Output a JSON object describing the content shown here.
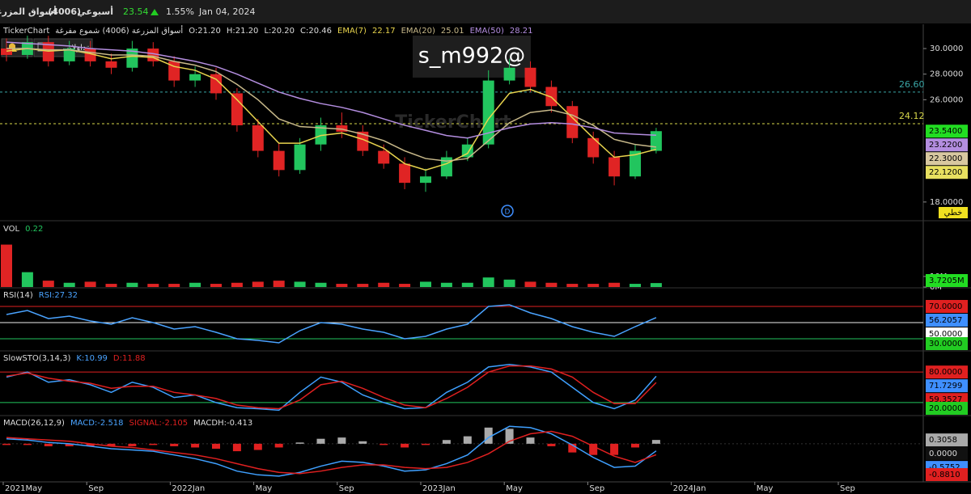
{
  "header": {
    "name": "أسواق المزرعة",
    "code": "(4006)",
    "period": "أسبوعي",
    "price": "23.54",
    "change": "1.55%",
    "date": "Jan 04, 2024"
  },
  "toolbar": {
    "alerts": "3",
    "portfolio": "تداولاتي"
  },
  "watermark": "s_m992@",
  "brand_watermark": "TickerChart",
  "event_marker": "D",
  "x_axis": {
    "labels": [
      "2021May",
      "Sep",
      "2022Jan",
      "May",
      "Sep",
      "2023Jan",
      "May",
      "Sep",
      "2024Jan",
      "May",
      "Sep"
    ]
  },
  "chart_data": [
    {
      "type": "candlestick",
      "legend": [
        {
          "text": "TickerChart",
          "color": "#dddddd"
        },
        {
          "text": "أسواق المزرعة (4006) شموع مفرغة",
          "color": "#dddddd"
        },
        {
          "text": "O:21.20",
          "color": "#dddddd"
        },
        {
          "text": "H:21.20",
          "color": "#dddddd"
        },
        {
          "text": "L:20.20",
          "color": "#dddddd"
        },
        {
          "text": "C:20.46",
          "color": "#dddddd"
        },
        {
          "text": "EMA(7)",
          "color": "#e8d44d"
        },
        {
          "text": "22.17",
          "color": "#e8d44d"
        },
        {
          "text": "EMA(20)",
          "color": "#c8b98a"
        },
        {
          "text": "25.01",
          "color": "#c8b98a"
        },
        {
          "text": "EMA(50)",
          "color": "#b48ee0"
        },
        {
          "text": "28.21",
          "color": "#b48ee0"
        }
      ],
      "up_color": "#22c55e",
      "down_color": "#e02424",
      "open": [
        30.0,
        29.5,
        30.5,
        29.0,
        30.0,
        29.0,
        28.5,
        30.0,
        29.0,
        27.5,
        28.0,
        26.5,
        24.0,
        22.0,
        20.5,
        22.5,
        24.0,
        23.5,
        22.0,
        21.0,
        19.5,
        20.0,
        21.5,
        22.5,
        27.5,
        28.5,
        27.0,
        25.5,
        23.0,
        21.5,
        20.0,
        22.0
      ],
      "high": [
        30.8,
        31.0,
        31.0,
        30.6,
        30.6,
        29.6,
        30.6,
        30.5,
        29.4,
        28.6,
        28.5,
        26.9,
        24.5,
        22.6,
        23.0,
        24.6,
        25.0,
        24.0,
        22.5,
        21.5,
        20.6,
        22.0,
        23.0,
        28.3,
        29.2,
        29.0,
        27.5,
        25.9,
        23.5,
        22.0,
        22.5,
        23.8
      ],
      "low": [
        29.0,
        29.2,
        28.6,
        28.7,
        28.6,
        28.0,
        28.2,
        28.6,
        27.0,
        27.0,
        26.0,
        23.5,
        21.5,
        20.0,
        20.2,
        22.0,
        23.0,
        21.6,
        20.6,
        19.0,
        18.8,
        19.8,
        21.2,
        22.2,
        27.2,
        26.6,
        25.0,
        22.6,
        21.0,
        19.3,
        19.8,
        21.8
      ],
      "close": [
        29.5,
        30.5,
        29.0,
        30.0,
        29.0,
        28.5,
        30.0,
        29.0,
        27.5,
        28.0,
        26.5,
        24.0,
        22.0,
        20.5,
        22.5,
        24.0,
        23.5,
        22.0,
        21.0,
        19.5,
        20.0,
        21.5,
        22.5,
        27.5,
        28.5,
        27.0,
        25.5,
        23.0,
        21.5,
        20.0,
        22.0,
        23.54
      ],
      "series": [
        {
          "color": "#e8d44d",
          "values": [
            29.8,
            30.0,
            29.8,
            29.9,
            29.6,
            29.2,
            29.4,
            29.3,
            28.6,
            28.3,
            27.6,
            26.0,
            24.3,
            22.6,
            22.6,
            23.2,
            23.4,
            22.9,
            22.2,
            21.0,
            20.5,
            21.0,
            21.8,
            24.5,
            26.5,
            26.8,
            26.2,
            24.6,
            23.0,
            21.5,
            21.7,
            22.12
          ]
        },
        {
          "color": "#c8b98a",
          "values": [
            30.0,
            30.0,
            29.9,
            29.9,
            29.7,
            29.5,
            29.5,
            29.4,
            29.0,
            28.7,
            28.2,
            27.2,
            26.0,
            24.5,
            23.9,
            23.8,
            23.7,
            23.3,
            22.8,
            22.0,
            21.4,
            21.2,
            21.4,
            22.8,
            24.2,
            25.0,
            25.2,
            24.8,
            24.0,
            22.9,
            22.5,
            22.3
          ]
        },
        {
          "color": "#b48ee0",
          "values": [
            30.5,
            30.4,
            30.3,
            30.2,
            30.0,
            29.9,
            29.8,
            29.6,
            29.3,
            29.0,
            28.6,
            28.0,
            27.3,
            26.6,
            26.1,
            25.7,
            25.4,
            25.0,
            24.5,
            24.0,
            23.6,
            23.2,
            23.0,
            23.4,
            23.8,
            24.1,
            24.2,
            24.1,
            23.8,
            23.4,
            23.3,
            23.22
          ]
        }
      ],
      "ylim": [
        16.6,
        31.9
      ],
      "yticks": [
        {
          "value": 18,
          "label": "18.0000"
        },
        {
          "value": 26,
          "label": "26.0000"
        },
        {
          "value": 28,
          "label": "28.0000"
        },
        {
          "value": 30,
          "label": "30.0000"
        }
      ],
      "hlines": [
        {
          "value": 26.6,
          "label": "26.60",
          "color": "#3aa6a6",
          "dash": true
        },
        {
          "value": 24.12,
          "label": "24.12",
          "color": "#d8d84a",
          "dash": true
        }
      ],
      "badges": [
        {
          "value": 23.54,
          "label": "23.5400",
          "color": "#22dd22"
        },
        {
          "value": 23.22,
          "label": "23.2200",
          "color": "#b48ee0"
        },
        {
          "value": 22.3,
          "label": "22.3000",
          "color": "#d8c8a0"
        },
        {
          "value": 22.12,
          "label": "22.1200",
          "color": "#e8e060"
        }
      ],
      "mode_label": "خطي"
    },
    {
      "type": "bar",
      "legend": [
        {
          "text": "VOL",
          "color": "#dddddd"
        },
        {
          "text": "0.22",
          "color": "#22c55e"
        }
      ],
      "values": [
        40,
        14,
        6,
        4,
        5,
        3,
        4,
        3,
        3,
        4,
        3,
        4,
        5,
        6,
        5,
        4,
        3,
        3,
        4,
        3,
        5,
        4,
        4,
        9,
        7,
        5,
        4,
        3,
        3,
        4,
        3,
        3.7205
      ],
      "ylim": [
        0,
        61
      ],
      "yticks": [
        {
          "value": 0,
          "label": "0M"
        },
        {
          "value": 10,
          "label": "10M"
        }
      ],
      "badges": [
        {
          "value": 3.7205,
          "label": "3.7205M",
          "color": "#22dd22"
        }
      ]
    },
    {
      "type": "line",
      "legend": [
        {
          "text": "RSI(14)",
          "color": "#dddddd"
        },
        {
          "text": "RSI:27.32",
          "color": "#4aa3ff"
        }
      ],
      "series": [
        {
          "color": "#4aa3ff",
          "values": [
            60,
            65,
            55,
            58,
            52,
            48,
            56,
            50,
            42,
            45,
            38,
            30,
            28,
            25,
            40,
            50,
            48,
            42,
            38,
            30,
            33,
            42,
            48,
            70,
            72,
            62,
            55,
            45,
            38,
            33,
            45,
            56.2057
          ]
        }
      ],
      "ylim": [
        16,
        92
      ],
      "hlines": [
        {
          "value": 70,
          "color": "#e02020"
        },
        {
          "value": 50,
          "color": "#eeeeee"
        },
        {
          "value": 30,
          "color": "#22c55e"
        }
      ],
      "badges": [
        {
          "value": 70,
          "label": "70.0000",
          "color": "#e02020"
        },
        {
          "value": 56.2057,
          "label": "56.2057",
          "color": "#3f8fff"
        },
        {
          "value": 50,
          "label": "50.0000",
          "color": "#ffffff"
        },
        {
          "value": 30,
          "label": "30.0000",
          "color": "#22cc22"
        }
      ]
    },
    {
      "type": "line",
      "legend": [
        {
          "text": "SlowSTO(3,14,3)",
          "color": "#dddddd"
        },
        {
          "text": "K:10.99",
          "color": "#4aa3ff"
        },
        {
          "text": "D:11.88",
          "color": "#e02020"
        }
      ],
      "series": [
        {
          "color": "#3fa0ff",
          "values": [
            70,
            80,
            60,
            65,
            55,
            40,
            60,
            50,
            30,
            35,
            20,
            10,
            8,
            5,
            40,
            70,
            60,
            35,
            20,
            8,
            10,
            40,
            60,
            90,
            95,
            90,
            80,
            50,
            20,
            8,
            25,
            71.7299
          ]
        },
        {
          "color": "#e02020",
          "values": [
            72,
            78,
            68,
            62,
            58,
            48,
            52,
            52,
            40,
            35,
            28,
            15,
            10,
            8,
            25,
            55,
            62,
            48,
            30,
            15,
            10,
            28,
            50,
            80,
            92,
            92,
            86,
            70,
            40,
            18,
            18,
            59.3527
          ]
        }
      ],
      "ylim": [
        -4,
        120
      ],
      "hlines": [
        {
          "value": 80,
          "color": "#e02020"
        },
        {
          "value": 20,
          "color": "#22c55e"
        }
      ],
      "badges": [
        {
          "value": 80,
          "label": "80.0000",
          "color": "#e02020"
        },
        {
          "value": 71.7299,
          "label": "71.7299",
          "color": "#3f8fff"
        },
        {
          "value": 59.3527,
          "label": "59.3527",
          "color": "#e02020"
        },
        {
          "value": 20,
          "label": "20.0000",
          "color": "#22cc22"
        }
      ]
    },
    {
      "type": "macd",
      "legend": [
        {
          "text": "MACD(26,12,9)",
          "color": "#dddddd"
        },
        {
          "text": "MACD:-2.518",
          "color": "#4aa3ff"
        },
        {
          "text": "SIGNAL:-2.105",
          "color": "#e02020"
        },
        {
          "text": "MACDH:-0.413",
          "color": "#dddddd"
        }
      ],
      "histogram": [
        -0.1,
        -0.1,
        -0.2,
        -0.2,
        -0.2,
        -0.2,
        -0.2,
        -0.1,
        -0.2,
        -0.3,
        -0.4,
        -0.6,
        -0.5,
        -0.3,
        0.1,
        0.4,
        0.5,
        0.2,
        -0.1,
        -0.3,
        -0.1,
        0.3,
        0.6,
        1.3,
        1.2,
        0.5,
        -0.2,
        -0.7,
        -0.9,
        -0.9,
        -0.3,
        0.3058
      ],
      "pos_color": "#aaaaaa",
      "neg_color": "#e02020",
      "series": [
        {
          "color": "#3fa0ff",
          "values": [
            0.4,
            0.3,
            0.1,
            0.0,
            -0.2,
            -0.4,
            -0.5,
            -0.6,
            -0.9,
            -1.2,
            -1.6,
            -2.2,
            -2.5,
            -2.6,
            -2.3,
            -1.8,
            -1.4,
            -1.5,
            -1.8,
            -2.2,
            -2.1,
            -1.6,
            -0.9,
            0.5,
            1.4,
            1.3,
            0.8,
            -0.1,
            -1.1,
            -1.9,
            -1.8,
            -0.5752
          ]
        },
        {
          "color": "#e02020",
          "values": [
            0.5,
            0.4,
            0.3,
            0.2,
            0.0,
            -0.2,
            -0.3,
            -0.5,
            -0.7,
            -0.9,
            -1.2,
            -1.6,
            -2.0,
            -2.3,
            -2.4,
            -2.2,
            -1.9,
            -1.7,
            -1.7,
            -1.9,
            -2.0,
            -1.9,
            -1.5,
            -0.8,
            0.2,
            0.8,
            1.0,
            0.6,
            -0.2,
            -1.0,
            -1.5,
            -0.881
          ]
        }
      ],
      "ylim": [
        -3,
        2.2
      ],
      "badges": [
        {
          "value": 0.3058,
          "label": "0.3058",
          "color": "#aaaaaa"
        },
        {
          "value": 0,
          "label": "0.0000",
          "color": "#111111"
        },
        {
          "value": -0.5752,
          "label": "-0.5752",
          "color": "#3f8fff"
        },
        {
          "value": -0.881,
          "label": "-0.8810",
          "color": "#e02020"
        }
      ]
    }
  ]
}
